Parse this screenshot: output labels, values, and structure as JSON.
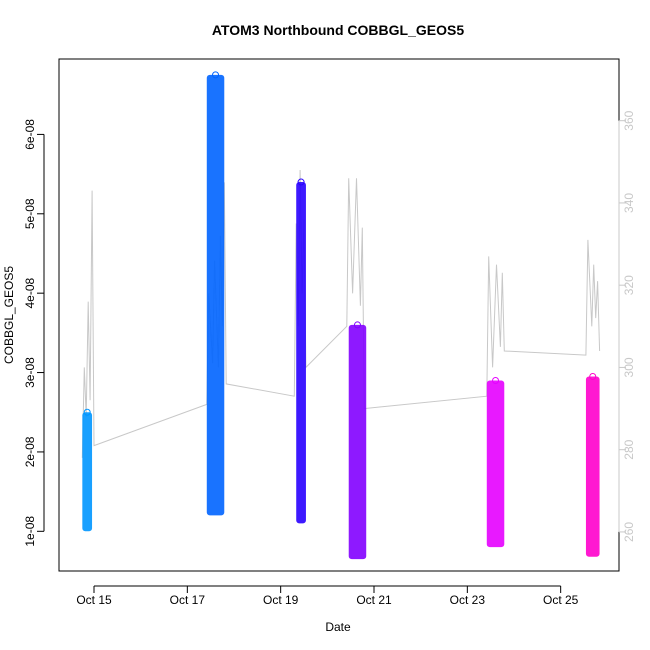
{
  "chart_data": {
    "type": "scatter",
    "title": "ATOM3 Northbound COBBGL_GEOS5",
    "xlabel": "Date",
    "ylabel": "COBBGL_GEOS5",
    "x_ticks": [
      "Oct 15",
      "Oct 17",
      "Oct 19",
      "Oct 21",
      "Oct 23",
      "Oct 25"
    ],
    "y_ticks": [
      "1e-08",
      "2e-08",
      "3e-08",
      "4e-08",
      "5e-08",
      "6e-08"
    ],
    "y2_ticks": [
      "260",
      "280",
      "300",
      "320",
      "340",
      "360"
    ],
    "xlim": [
      "2016-10-14T06:00",
      "2016-10-26T06:00"
    ],
    "ylim": [
      5e-09,
      6.95e-08
    ],
    "y2lim": [
      250.5,
      375
    ],
    "grid": false,
    "segments": [
      {
        "color": "#0096ff",
        "x0": "2016-10-14T18:00",
        "x1": "2016-10-14T23:00",
        "ymin": 1e-08,
        "ymax": 2.5e-08
      },
      {
        "color": "#0064ff",
        "x0": "2016-10-17T10:00",
        "x1": "2016-10-17T19:00",
        "ymin": 1.2e-08,
        "ymax": 6.75e-08
      },
      {
        "color": "#2800ff",
        "x0": "2016-10-19T08:00",
        "x1": "2016-10-19T13:00",
        "ymin": 1.1e-08,
        "ymax": 5.4e-08
      },
      {
        "color": "#8200ff",
        "x0": "2016-10-20T11:00",
        "x1": "2016-10-20T20:00",
        "ymin": 6.5e-09,
        "ymax": 3.6e-08
      },
      {
        "color": "#e600ff",
        "x0": "2016-10-23T10:00",
        "x1": "2016-10-23T19:00",
        "ymin": 8e-09,
        "ymax": 2.9e-08
      },
      {
        "color": "#ff00cc",
        "x0": "2016-10-25T13:00",
        "x1": "2016-10-25T20:00",
        "ymin": 6.8e-09,
        "ymax": 2.95e-08
      }
    ],
    "secondary_series": {
      "color": "#c8c8c8",
      "points": [
        [
          "2016-10-14T18:00",
          278
        ],
        [
          "2016-10-14T19:00",
          300
        ],
        [
          "2016-10-14T20:00",
          288
        ],
        [
          "2016-10-14T21:00",
          316
        ],
        [
          "2016-10-14T22:00",
          292
        ],
        [
          "2016-10-14T23:00",
          343
        ],
        [
          "2016-10-15T00:00",
          281
        ],
        [
          "2016-10-17T10:00",
          291
        ],
        [
          "2016-10-17T11:00",
          318
        ],
        [
          "2016-10-17T13:00",
          301
        ],
        [
          "2016-10-17T14:00",
          326
        ],
        [
          "2016-10-17T16:00",
          300
        ],
        [
          "2016-10-17T17:00",
          332
        ],
        [
          "2016-10-17T18:00",
          310
        ],
        [
          "2016-10-17T19:00",
          345
        ],
        [
          "2016-10-17T20:00",
          296
        ],
        [
          "2016-10-19T07:00",
          293
        ],
        [
          "2016-10-19T08:00",
          335
        ],
        [
          "2016-10-19T09:00",
          310
        ],
        [
          "2016-10-19T10:00",
          348
        ],
        [
          "2016-10-19T11:00",
          318
        ],
        [
          "2016-10-19T12:00",
          336
        ],
        [
          "2016-10-19T13:00",
          300
        ],
        [
          "2016-10-20T10:00",
          310
        ],
        [
          "2016-10-20T11:00",
          346
        ],
        [
          "2016-10-20T13:00",
          318
        ],
        [
          "2016-10-20T15:00",
          346
        ],
        [
          "2016-10-20T17:00",
          315
        ],
        [
          "2016-10-20T18:00",
          334
        ],
        [
          "2016-10-20T19:00",
          290
        ],
        [
          "2016-10-23T10:00",
          293
        ],
        [
          "2016-10-23T11:00",
          327
        ],
        [
          "2016-10-23T13:00",
          300
        ],
        [
          "2016-10-23T15:00",
          325
        ],
        [
          "2016-10-23T17:00",
          305
        ],
        [
          "2016-10-23T18:00",
          323
        ],
        [
          "2016-10-23T19:00",
          304
        ],
        [
          "2016-10-25T13:00",
          303
        ],
        [
          "2016-10-25T14:00",
          331
        ],
        [
          "2016-10-25T16:00",
          310
        ],
        [
          "2016-10-25T17:00",
          325
        ],
        [
          "2016-10-25T18:00",
          312
        ],
        [
          "2016-10-25T19:00",
          321
        ],
        [
          "2016-10-25T20:00",
          304
        ]
      ]
    }
  }
}
